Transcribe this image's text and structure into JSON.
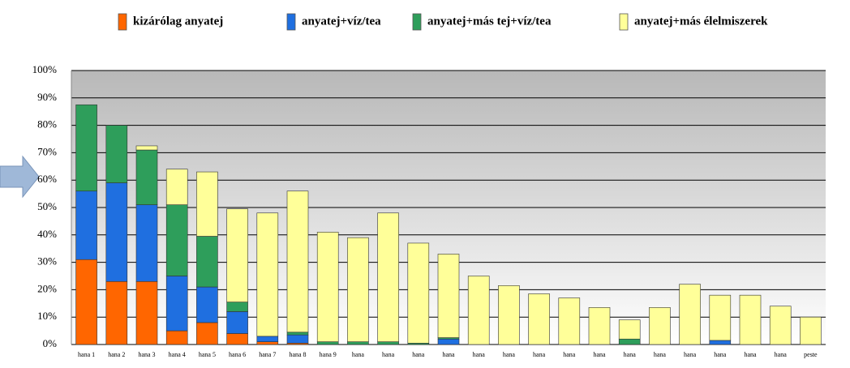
{
  "chart_data": {
    "type": "stacked_bar",
    "categories": [
      "hana 1",
      "hana 2",
      "hana 3",
      "hana 4",
      "hana 5",
      "hana 6",
      "hana 7",
      "hana 8",
      "hana 9",
      "hana",
      "hana",
      "hana",
      "hana",
      "hana",
      "hana",
      "hana",
      "hana",
      "hana",
      "hana",
      "hana",
      "hana",
      "hana",
      "hana",
      "hana",
      "peste"
    ],
    "series": [
      {
        "name": "kizárólag anyatej",
        "color": "#ff6600",
        "values": [
          31,
          23,
          23,
          5,
          8,
          4,
          1,
          0.5,
          0,
          0,
          0,
          0,
          0,
          0,
          0,
          0,
          0,
          0,
          0,
          0,
          0,
          0,
          0,
          0,
          0
        ]
      },
      {
        "name": "anyatej+víz/tea",
        "color": "#1f6fe0",
        "values": [
          25,
          36,
          28,
          20,
          13,
          8,
          2,
          3,
          0,
          0,
          0,
          0,
          2,
          0,
          0,
          0,
          0,
          0,
          0,
          0,
          0,
          1.5,
          0,
          0,
          0
        ]
      },
      {
        "name": "anyatej+más tej+víz/tea",
        "color": "#2e9e5b",
        "values": [
          31.5,
          21,
          20,
          26,
          18.5,
          3.5,
          0,
          1,
          1,
          1,
          1,
          0.5,
          0.5,
          0,
          0,
          0,
          0,
          0,
          2,
          0,
          0,
          0,
          0,
          0,
          0
        ]
      },
      {
        "name": "anyatej+más élelmiszerek",
        "color": "#ffff99",
        "values": [
          0,
          0,
          1.5,
          13,
          23.5,
          34,
          45,
          51.5,
          40,
          38,
          47,
          36.5,
          30.5,
          25,
          21.5,
          18.5,
          17,
          13.5,
          7,
          13.5,
          22,
          16.5,
          18,
          14,
          10
        ]
      }
    ],
    "ylim": [
      0,
      100
    ],
    "yticks": [
      {
        "value": 0,
        "label": "0%"
      },
      {
        "value": 10,
        "label": "10%"
      },
      {
        "value": 20,
        "label": "20%"
      },
      {
        "value": 30,
        "label": "30%"
      },
      {
        "value": 40,
        "label": "40%"
      },
      {
        "value": 50,
        "label": "50%"
      },
      {
        "value": 60,
        "label": "60%"
      },
      {
        "value": 70,
        "label": "70%"
      },
      {
        "value": 80,
        "label": "80%"
      },
      {
        "value": 90,
        "label": "90%"
      },
      {
        "value": 100,
        "label": "100%"
      }
    ],
    "grid": true
  }
}
